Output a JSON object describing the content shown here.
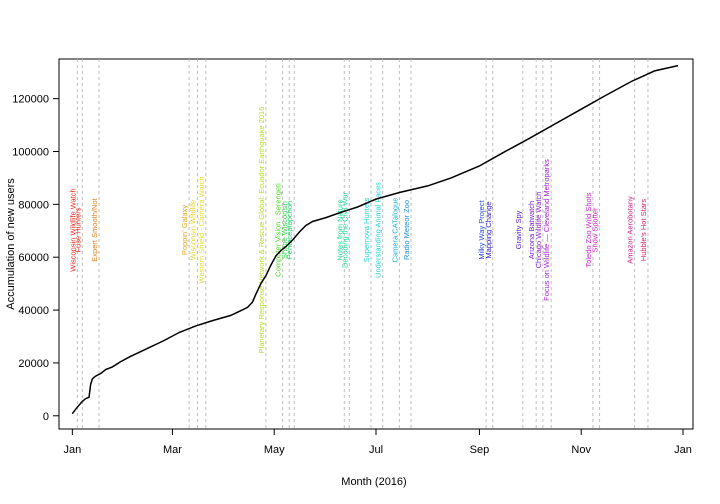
{
  "chart_data": {
    "type": "line",
    "title": "",
    "xlabel": "Month (2016)",
    "ylabel": "Accumulation of new users",
    "x_domain": [
      "2015-12-24",
      "2017-01-07"
    ],
    "ylim": [
      -5000,
      135000
    ],
    "y_ticks": [
      0,
      20000,
      40000,
      60000,
      80000,
      100000,
      120000
    ],
    "y_tick_labels": [
      "0",
      "20000",
      "40000",
      "60000",
      "80000",
      "100000",
      "120000"
    ],
    "x_ticks": [
      {
        "date": "2016-01-01",
        "label": "Jan"
      },
      {
        "date": "2016-03-01",
        "label": "Mar"
      },
      {
        "date": "2016-05-01",
        "label": "May"
      },
      {
        "date": "2016-07-01",
        "label": "Jul"
      },
      {
        "date": "2016-09-01",
        "label": "Sep"
      },
      {
        "date": "2016-11-01",
        "label": "Nov"
      },
      {
        "date": "2017-01-01",
        "label": "Jan"
      }
    ],
    "grid": false,
    "series": [
      {
        "color": "#000000",
        "points": [
          {
            "x": "2016-01-01",
            "y": 800
          },
          {
            "x": "2016-01-03",
            "y": 2500
          },
          {
            "x": "2016-01-05",
            "y": 4000
          },
          {
            "x": "2016-01-07",
            "y": 5500
          },
          {
            "x": "2016-01-09",
            "y": 6500
          },
          {
            "x": "2016-01-11",
            "y": 7000
          },
          {
            "x": "2016-01-12",
            "y": 12000
          },
          {
            "x": "2016-01-13",
            "y": 14000
          },
          {
            "x": "2016-01-15",
            "y": 15000
          },
          {
            "x": "2016-01-18",
            "y": 16000
          },
          {
            "x": "2016-01-21",
            "y": 17500
          },
          {
            "x": "2016-01-25",
            "y": 18500
          },
          {
            "x": "2016-01-30",
            "y": 20500
          },
          {
            "x": "2016-02-05",
            "y": 22500
          },
          {
            "x": "2016-02-15",
            "y": 25500
          },
          {
            "x": "2016-02-25",
            "y": 28500
          },
          {
            "x": "2016-03-05",
            "y": 31500
          },
          {
            "x": "2016-03-15",
            "y": 34000
          },
          {
            "x": "2016-03-25",
            "y": 36000
          },
          {
            "x": "2016-04-05",
            "y": 38000
          },
          {
            "x": "2016-04-10",
            "y": 39500
          },
          {
            "x": "2016-04-15",
            "y": 41000
          },
          {
            "x": "2016-04-18",
            "y": 43000
          },
          {
            "x": "2016-04-20",
            "y": 46000
          },
          {
            "x": "2016-04-23",
            "y": 50000
          },
          {
            "x": "2016-04-26",
            "y": 53000
          },
          {
            "x": "2016-04-29",
            "y": 57000
          },
          {
            "x": "2016-05-02",
            "y": 60500
          },
          {
            "x": "2016-05-05",
            "y": 62500
          },
          {
            "x": "2016-05-08",
            "y": 64000
          },
          {
            "x": "2016-05-12",
            "y": 66500
          },
          {
            "x": "2016-05-16",
            "y": 69500
          },
          {
            "x": "2016-05-20",
            "y": 72000
          },
          {
            "x": "2016-05-24",
            "y": 73500
          },
          {
            "x": "2016-06-01",
            "y": 75000
          },
          {
            "x": "2016-06-10",
            "y": 77000
          },
          {
            "x": "2016-06-20",
            "y": 79000
          },
          {
            "x": "2016-07-01",
            "y": 82000
          },
          {
            "x": "2016-07-15",
            "y": 84500
          },
          {
            "x": "2016-08-01",
            "y": 87000
          },
          {
            "x": "2016-08-15",
            "y": 90000
          },
          {
            "x": "2016-09-01",
            "y": 94500
          },
          {
            "x": "2016-09-15",
            "y": 99500
          },
          {
            "x": "2016-10-01",
            "y": 105000
          },
          {
            "x": "2016-10-15",
            "y": 110000
          },
          {
            "x": "2016-11-01",
            "y": 116000
          },
          {
            "x": "2016-11-15",
            "y": 121000
          },
          {
            "x": "2016-12-01",
            "y": 126500
          },
          {
            "x": "2016-12-15",
            "y": 130500
          },
          {
            "x": "2016-12-29",
            "y": 132500
          }
        ]
      }
    ],
    "annotations": [
      {
        "date": "2016-01-04",
        "label": "Wisconsin Wildlife Watch",
        "color": "#e3251d"
      },
      {
        "date": "2016-01-07",
        "label": "Fuse Hunters",
        "color": "#e3251d"
      },
      {
        "date": "2016-01-17",
        "label": "Expert Smooth/Not",
        "color": "#e0821c"
      },
      {
        "date": "2016-03-11",
        "label": "Poppin' Galaxy",
        "color": "#e6a81f"
      },
      {
        "date": "2016-03-16",
        "label": "Wisconsin Wildlife",
        "color": "#e6d21f"
      },
      {
        "date": "2016-03-21",
        "label": "Western Shield - Camera Watch",
        "color": "#e6e01f"
      },
      {
        "date": "2016-04-26",
        "label": "Planetary Response Network & Rescue Global: Ecuador Earthquake 2016",
        "color": "#b3e01f"
      },
      {
        "date": "2016-05-06",
        "label": "Computer Vision : Serengeti",
        "color": "#4ed422"
      },
      {
        "date": "2016-05-10",
        "label": "Shape Wisconsin",
        "color": "#2bd44a"
      },
      {
        "date": "2016-05-13",
        "label": "Pentaceptopchon",
        "color": "#1fd66e"
      },
      {
        "date": "2016-06-12",
        "label": "Notes from Nature",
        "color": "#1fd68b"
      },
      {
        "date": "2016-06-15",
        "label": "Decoding the Civil War",
        "color": "#1fd6a3"
      },
      {
        "date": "2016-06-28",
        "label": "Supernova Hunters",
        "color": "#1fd6c8"
      },
      {
        "date": "2016-07-05",
        "label": "Understanding Animal Faces",
        "color": "#1fd3d6"
      },
      {
        "date": "2016-07-15",
        "label": "Camera CATalogue",
        "color": "#1fb3d6"
      },
      {
        "date": "2016-07-22",
        "label": "Radio Meteor Zoo",
        "color": "#1f8ed6"
      },
      {
        "date": "2016-09-05",
        "label": "Milky Way Project",
        "color": "#1f4ed6"
      },
      {
        "date": "2016-09-09",
        "label": "Mapping Change",
        "color": "#2a22d6"
      },
      {
        "date": "2016-09-27",
        "label": "Gravity Spy",
        "color": "#5a22d6"
      },
      {
        "date": "2016-10-05",
        "label": "Arizona Batwatch",
        "color": "#7622d6"
      },
      {
        "date": "2016-10-09",
        "label": "Chicago Wildlife Watch",
        "color": "#8e22d6"
      },
      {
        "date": "2016-10-14",
        "label": "Focus on Wildlife — Cleveland Metroparks",
        "color": "#a322d6"
      },
      {
        "date": "2016-11-08",
        "label": "Toledo Zoo Wild Shots",
        "color": "#c822d6"
      },
      {
        "date": "2016-11-12",
        "label": "Snow Spotter",
        "color": "#d622bf"
      },
      {
        "date": "2016-12-03",
        "label": "Amazon Aerobotany",
        "color": "#d6228e"
      },
      {
        "date": "2016-12-11",
        "label": "Hubble's Hot Stars",
        "color": "#d62260"
      }
    ]
  }
}
